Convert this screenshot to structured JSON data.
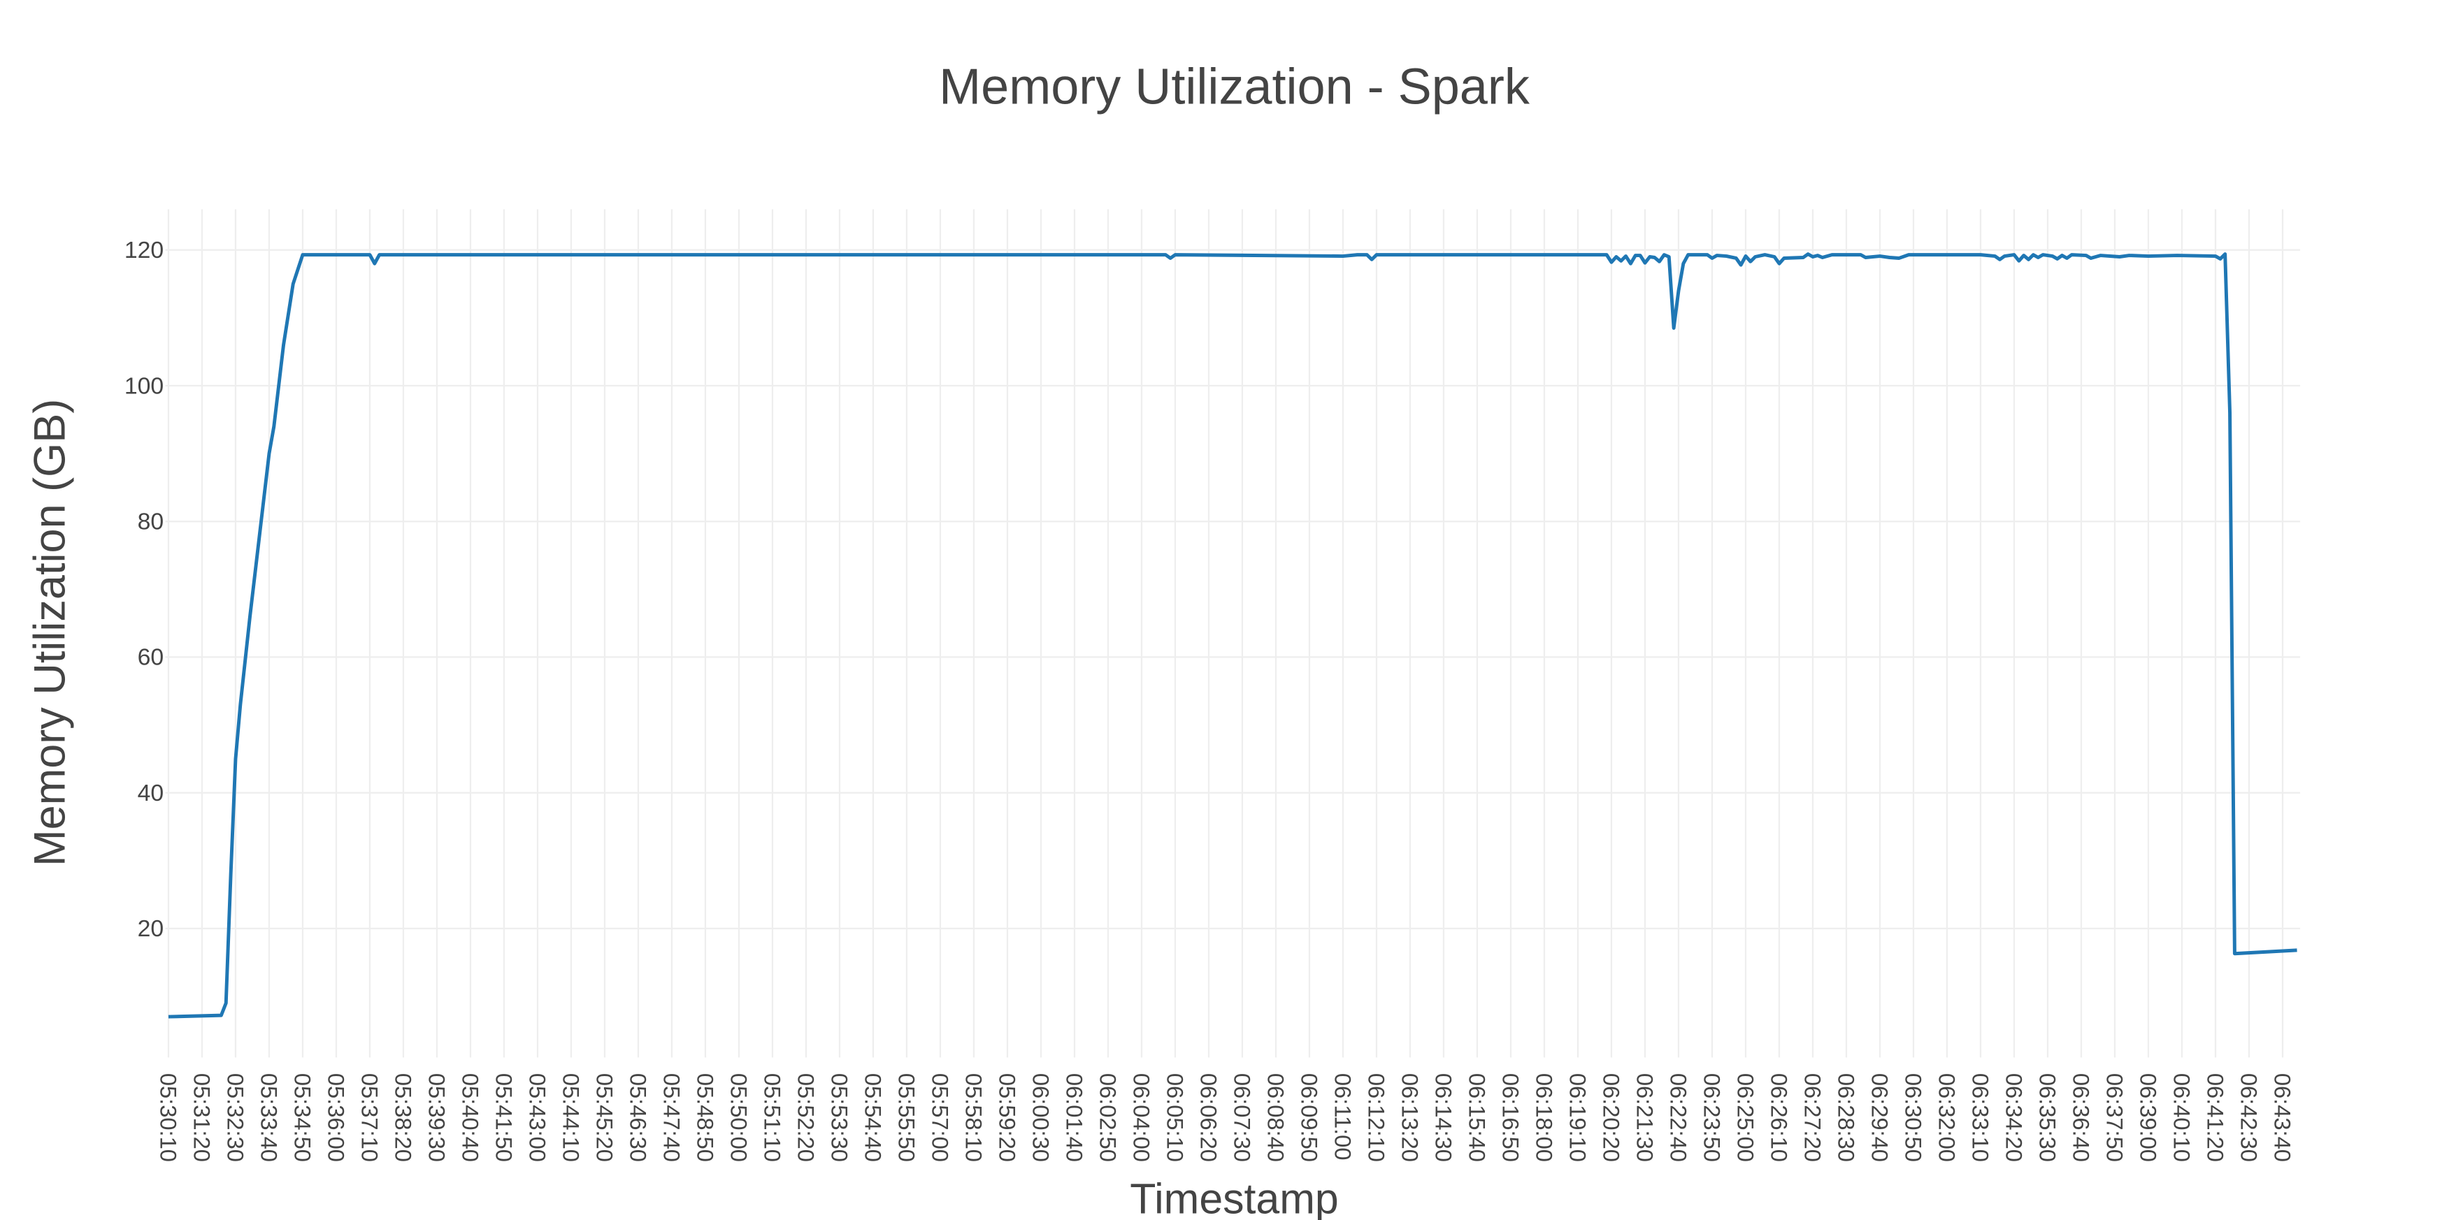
{
  "chart_data": {
    "type": "line",
    "title": "Memory Utilization - Spark",
    "xlabel": "Timestamp",
    "ylabel": "Memory Utilization (GB)",
    "x": [
      "05:30:10",
      "05:32:00",
      "05:32:10",
      "05:32:20",
      "05:32:30",
      "05:32:40",
      "05:33:00",
      "05:33:20",
      "05:33:40",
      "05:33:50",
      "05:34:10",
      "05:34:30",
      "05:34:50",
      "05:37:10",
      "05:37:20",
      "05:37:30",
      "06:04:50",
      "06:05:00",
      "06:05:10",
      "06:11:00",
      "06:11:30",
      "06:11:50",
      "06:12:00",
      "06:12:10",
      "06:20:10",
      "06:20:20",
      "06:20:30",
      "06:20:40",
      "06:20:50",
      "06:21:00",
      "06:21:10",
      "06:21:20",
      "06:21:30",
      "06:21:40",
      "06:21:50",
      "06:22:00",
      "06:22:10",
      "06:22:20",
      "06:22:30",
      "06:22:40",
      "06:22:50",
      "06:23:00",
      "06:23:40",
      "06:23:50",
      "06:24:00",
      "06:24:20",
      "06:24:40",
      "06:24:50",
      "06:25:00",
      "06:25:10",
      "06:25:20",
      "06:25:40",
      "06:26:00",
      "06:26:10",
      "06:26:20",
      "06:27:00",
      "06:27:10",
      "06:27:20",
      "06:27:30",
      "06:27:40",
      "06:28:00",
      "06:29:00",
      "06:29:10",
      "06:29:40",
      "06:30:00",
      "06:30:20",
      "06:30:40",
      "06:33:10",
      "06:33:40",
      "06:33:50",
      "06:34:00",
      "06:34:20",
      "06:34:30",
      "06:34:40",
      "06:34:50",
      "06:35:00",
      "06:35:10",
      "06:35:20",
      "06:35:40",
      "06:35:50",
      "06:36:00",
      "06:36:10",
      "06:36:20",
      "06:36:50",
      "06:37:00",
      "06:37:20",
      "06:38:00",
      "06:38:20",
      "06:39:00",
      "06:40:00",
      "06:41:20",
      "06:41:30",
      "06:41:40",
      "06:41:50",
      "06:42:00",
      "06:44:10"
    ],
    "series": [
      {
        "name": "Memory Utilization",
        "color": "#1f77b4",
        "values": [
          7.0,
          7.2,
          9.0,
          28,
          45,
          53,
          66,
          78,
          90,
          94,
          106,
          115,
          119.3,
          119.3,
          118,
          119.3,
          119.3,
          118.8,
          119.3,
          119.1,
          119.3,
          119.3,
          118.6,
          119.3,
          119.3,
          118.2,
          119,
          118.4,
          119.1,
          118,
          119.2,
          119.2,
          118.1,
          119,
          118.9,
          118.3,
          119.3,
          119,
          108.5,
          114,
          118,
          119.3,
          119.3,
          118.8,
          119.2,
          119.1,
          118.8,
          117.8,
          119.1,
          118.3,
          119.0,
          119.3,
          119.0,
          118,
          118.8,
          118.9,
          119.4,
          119,
          119.2,
          118.9,
          119.3,
          119.3,
          118.9,
          119.1,
          118.9,
          118.8,
          119.3,
          119.3,
          119.1,
          118.6,
          119.1,
          119.3,
          118.4,
          119.2,
          118.6,
          119.3,
          118.9,
          119.3,
          119.1,
          118.7,
          119.2,
          118.8,
          119.3,
          119.2,
          118.8,
          119.2,
          119.0,
          119.2,
          119.1,
          119.2,
          119.1,
          118.7,
          119.4,
          96,
          16.3,
          16.8
        ]
      }
    ],
    "xlim": [
      "05:30:10",
      "06:44:10"
    ],
    "xticks": [
      "05:30:10",
      "05:31:20",
      "05:32:30",
      "05:33:40",
      "05:34:50",
      "05:36:00",
      "05:37:10",
      "05:38:20",
      "05:39:30",
      "05:40:40",
      "05:41:50",
      "05:43:00",
      "05:44:10",
      "05:45:20",
      "05:46:30",
      "05:47:40",
      "05:48:50",
      "05:50:00",
      "05:51:10",
      "05:52:20",
      "05:53:30",
      "05:54:40",
      "05:55:50",
      "05:57:00",
      "05:58:10",
      "05:59:20",
      "06:00:30",
      "06:01:40",
      "06:02:50",
      "06:04:00",
      "06:05:10",
      "06:06:20",
      "06:07:30",
      "06:08:40",
      "06:09:50",
      "06:11:00",
      "06:12:10",
      "06:13:20",
      "06:14:30",
      "06:15:40",
      "06:16:50",
      "06:18:00",
      "06:19:10",
      "06:20:20",
      "06:21:30",
      "06:22:40",
      "06:23:50",
      "06:25:00",
      "06:26:10",
      "06:27:20",
      "06:28:30",
      "06:29:40",
      "06:30:50",
      "06:32:00",
      "06:33:10",
      "06:34:20",
      "06:35:30",
      "06:36:40",
      "06:37:50",
      "06:39:00",
      "06:40:10",
      "06:41:20",
      "06:42:30",
      "06:43:40"
    ],
    "ylim": [
      1,
      126
    ],
    "yticks": [
      20,
      40,
      60,
      80,
      100,
      120
    ],
    "grid": true
  }
}
